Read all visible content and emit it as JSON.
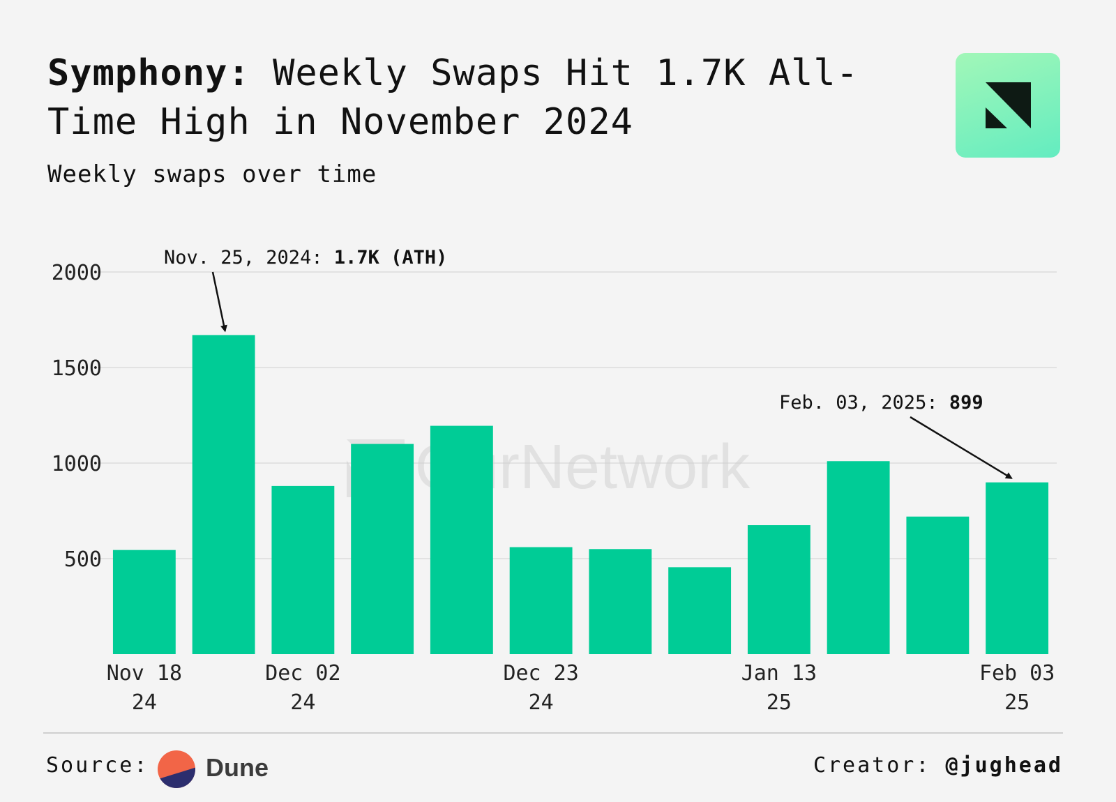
{
  "header": {
    "title_bold": "Symphony:",
    "title_rest": " Weekly Swaps Hit 1.7K All-Time High in November 2024",
    "subtitle": "Weekly swaps over time"
  },
  "logo": {
    "icon": "ournetwork-logo-icon",
    "bg_from": "#a2f7b8",
    "bg_to": "#63ecc0",
    "mark": "#0e1a14"
  },
  "watermark": {
    "text": "OurNetwork"
  },
  "footer": {
    "source_label": "Source:",
    "source_name": "Dune",
    "creator_label": "Creator:",
    "creator_handle": "@jughead"
  },
  "chart_data": {
    "type": "bar",
    "bar_color": "#00cc96",
    "categories": [
      "2024-11-18",
      "2024-11-25",
      "2024-12-02",
      "2024-12-09",
      "2024-12-16",
      "2024-12-23",
      "2024-12-30",
      "2025-01-06",
      "2025-01-13",
      "2025-01-20",
      "2025-01-27",
      "2025-02-03"
    ],
    "values": [
      545,
      1670,
      880,
      1100,
      1195,
      560,
      550,
      455,
      675,
      1010,
      720,
      899
    ],
    "ylim": [
      0,
      2000
    ],
    "yticks": [
      "500",
      "1000",
      "1500",
      "2000"
    ],
    "ytick_values": [
      500,
      1000,
      1500,
      2000
    ],
    "xticks": [
      {
        "index": 0,
        "line1": "Nov 18",
        "line2": "24"
      },
      {
        "index": 2,
        "line1": "Dec 02",
        "line2": "24"
      },
      {
        "index": 5,
        "line1": "Dec 23",
        "line2": "24"
      },
      {
        "index": 8,
        "line1": "Jan 13",
        "line2": "25"
      },
      {
        "index": 11,
        "line1": "Feb 03",
        "line2": "25"
      }
    ],
    "grid": true,
    "annotations": [
      {
        "index": 1,
        "label": "Nov. 25, 2024: ",
        "value_label": "1.7K (ATH)"
      },
      {
        "index": 11,
        "label": "Feb. 03, 2025: ",
        "value_label": "899"
      }
    ]
  }
}
